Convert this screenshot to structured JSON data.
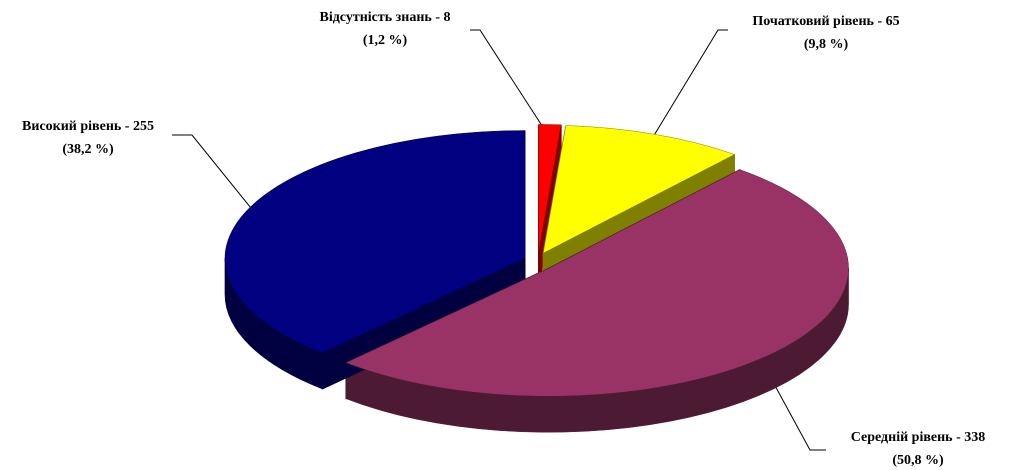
{
  "chart_data": {
    "type": "pie",
    "categories": [
      "Відсутність знань - 8",
      "Початковий рівень - 65",
      "Середній рівень - 338",
      "Високий рівень - 255"
    ],
    "values": [
      1.2,
      9.8,
      50.8,
      38.2
    ],
    "value_labels": [
      "(1,2 %)",
      "(9,8 %)",
      "(50,8 %)",
      "(38,2 %)"
    ],
    "colors": [
      "#ff0000",
      "#ffff00",
      "#993366",
      "#000080"
    ],
    "side_colors": [
      "#800000",
      "#808000",
      "#4d1a33",
      "#000040"
    ]
  }
}
